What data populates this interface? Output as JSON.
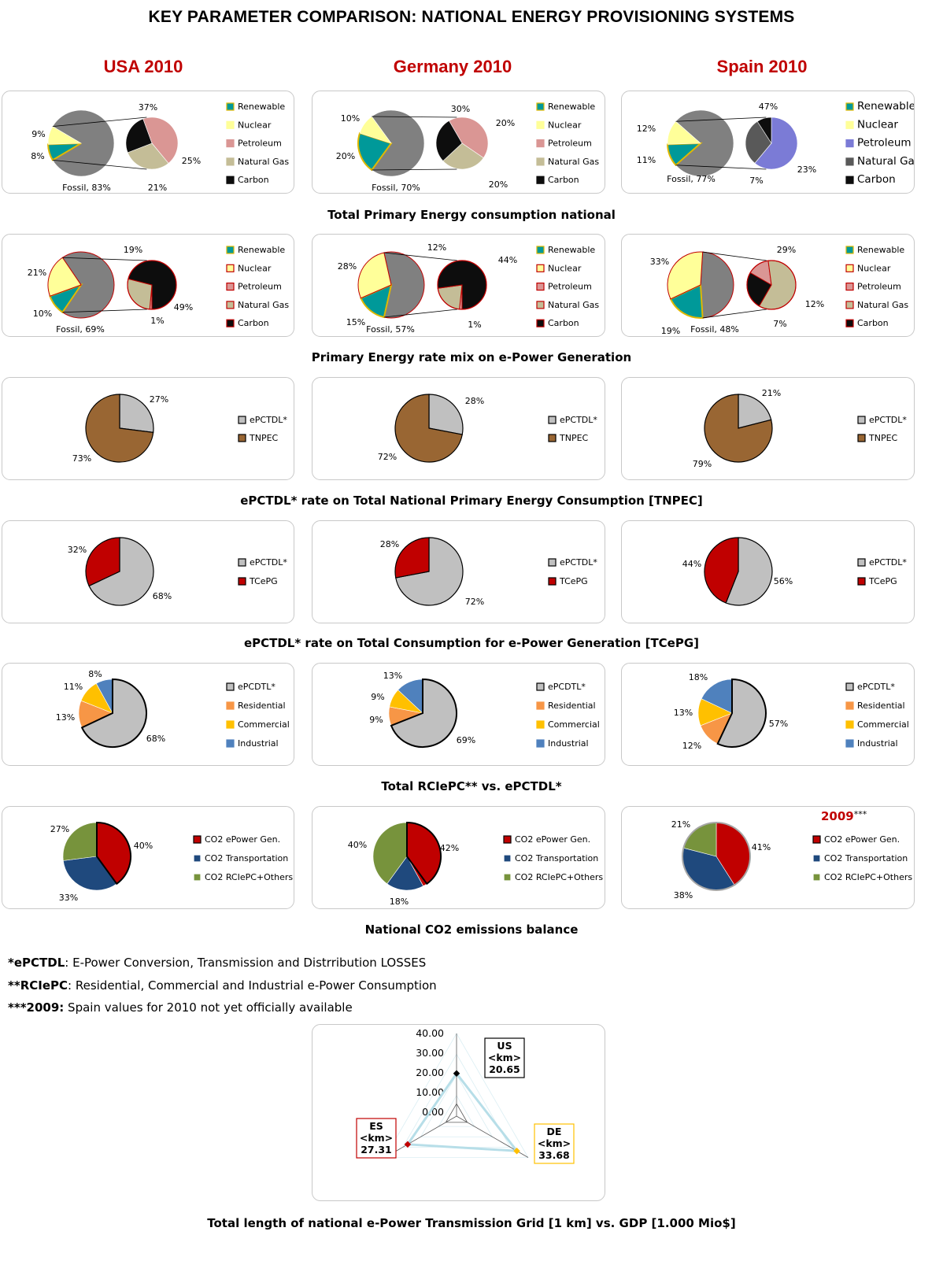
{
  "title": "KEY PARAMETER COMPARISON: NATIONAL ENERGY PROVISIONING SYSTEMS",
  "countries": [
    "USA 2010",
    "Germany 2010",
    "Spain 2010"
  ],
  "colors": {
    "renewable": "#009999",
    "nuclear": "#ffff99",
    "petroleum": "#da9694",
    "natural_gas": "#c4bd97",
    "carbon": "#0d0d0d",
    "fossil": "#808080",
    "petroleum_es": "#7b7bd6",
    "natural_gas_es": "#595959",
    "epctdl": "#c0c0c0",
    "tnpec": "#996633",
    "tcepg": "#c00000",
    "residential": "#f79646",
    "commercial": "#ffc000",
    "industrial": "#4f81bd",
    "co2_power": "#c00000",
    "co2_transport": "#1f497d",
    "co2_others": "#77933c",
    "accent": "#c00000"
  },
  "sections": {
    "s1": "Total Primary  Energy consumption national",
    "s2": "Primary Energy rate mix on e-Power Generation",
    "s3": "ePCTDL* rate on Total National Primary Energy Consumption [TNPEC]",
    "s4": "ePCTDL* rate on Total Consumption for e-Power Generation [TCePG]",
    "s5": "Total RCIePC** vs. ePCTDL*",
    "s6": "National CO2 emissions balance",
    "s7": "Total length of national e-Power Transmission Grid [1 km] vs. GDP [1.000 Mio$]"
  },
  "legends": {
    "energy": [
      "Renewable",
      "Nuclear",
      "Petroleum",
      "Natural Gas",
      "Carbon"
    ],
    "tnpec": [
      "ePCTDL*",
      "TNPEC"
    ],
    "tcepg": [
      "ePCTDL*",
      "TCePG"
    ],
    "rciepc": [
      "ePCDTL*",
      "Residential",
      "Commercial",
      "Industrial"
    ],
    "co2": [
      "CO2 ePower Gen.",
      "CO2 Transportation",
      "CO2 RCIePC+Others"
    ]
  },
  "spain_co2_year": "2009",
  "spain_co2_year_mark": "***",
  "notes": [
    {
      "key": "*ePCTDL",
      "text": ": E-Power Conversion, Transmission and Distrribution LOSSES"
    },
    {
      "key": "**RCIePC",
      "text": ": Residential, Commercial and Industrial e-Power Consumption"
    },
    {
      "key": "***2009:",
      "text": " Spain values for 2010 not yet officially available"
    }
  ],
  "chart_data": [
    {
      "type": "pie",
      "id": "primary_energy_consumption",
      "title": "Total Primary  Energy consumption national",
      "countries": [
        {
          "name": "USA 2010",
          "main": {
            "Renewable": 8,
            "Nuclear": 9,
            "Fossil": 83
          },
          "fossil_breakdown": {
            "Petroleum": 37,
            "Natural Gas": 25,
            "Carbon": 21
          }
        },
        {
          "name": "Germany 2010",
          "main": {
            "Renewable": 20,
            "Nuclear": 10,
            "Fossil": 70
          },
          "fossil_breakdown": {
            "Petroleum": 30,
            "Natural Gas": 20,
            "Carbon": 20
          }
        },
        {
          "name": "Spain 2010",
          "main": {
            "Renewable": 11,
            "Nuclear": 12,
            "Fossil": 77
          },
          "fossil_breakdown": {
            "Petroleum": 47,
            "Natural Gas": 23,
            "Carbon": 7
          }
        }
      ]
    },
    {
      "type": "pie",
      "id": "power_generation_mix",
      "title": "Primary Energy rate mix on e-Power Generation",
      "countries": [
        {
          "name": "USA 2010",
          "main": {
            "Renewable": 10,
            "Nuclear": 21,
            "Fossil": 69
          },
          "fossil_breakdown": {
            "Petroleum": 1,
            "Natural Gas": 19,
            "Carbon": 49
          }
        },
        {
          "name": "Germany 2010",
          "main": {
            "Renewable": 15,
            "Nuclear": 28,
            "Fossil": 57
          },
          "fossil_breakdown": {
            "Petroleum": 1,
            "Natural Gas": 12,
            "Carbon": 44
          }
        },
        {
          "name": "Spain 2010",
          "main": {
            "Renewable": 19,
            "Nuclear": 33,
            "Fossil": 48
          },
          "fossil_breakdown": {
            "Petroleum": 7,
            "Natural Gas": 29,
            "Carbon": 12
          }
        }
      ]
    },
    {
      "type": "pie",
      "id": "epctdl_tnpec",
      "title": "ePCTDL* rate on Total National Primary Energy Consumption [TNPEC]",
      "countries": [
        {
          "name": "USA 2010",
          "values": {
            "ePCTDL*": 27,
            "TNPEC": 73
          }
        },
        {
          "name": "Germany 2010",
          "values": {
            "ePCTDL*": 28,
            "TNPEC": 72
          }
        },
        {
          "name": "Spain 2010",
          "values": {
            "ePCTDL*": 21,
            "TNPEC": 79
          }
        }
      ]
    },
    {
      "type": "pie",
      "id": "epctdl_tcepg",
      "title": "ePCTDL* rate on Total Consumption for e-Power Generation [TCePG]",
      "countries": [
        {
          "name": "USA 2010",
          "values": {
            "ePCTDL*": 68,
            "TCePG": 32
          }
        },
        {
          "name": "Germany 2010",
          "values": {
            "ePCTDL*": 72,
            "TCePG": 28
          }
        },
        {
          "name": "Spain 2010",
          "values": {
            "ePCTDL*": 56,
            "TCePG": 44
          }
        }
      ]
    },
    {
      "type": "pie",
      "id": "rciepc_vs_epctdl",
      "title": "Total RCIePC** vs. ePCTDL*",
      "countries": [
        {
          "name": "USA 2010",
          "values": {
            "ePCDTL*": 68,
            "Residential": 13,
            "Commercial": 11,
            "Industrial": 8
          }
        },
        {
          "name": "Germany 2010",
          "values": {
            "ePCDTL*": 69,
            "Residential": 9,
            "Commercial": 9,
            "Industrial": 13
          }
        },
        {
          "name": "Spain 2010",
          "values": {
            "ePCDTL*": 57,
            "Residential": 12,
            "Commercial": 13,
            "Industrial": 18
          }
        }
      ]
    },
    {
      "type": "pie",
      "id": "co2_balance",
      "title": "National CO2 emissions balance",
      "countries": [
        {
          "name": "USA 2010",
          "values": {
            "CO2 ePower Gen.": 40,
            "CO2 Transportation": 33,
            "CO2 RCIePC+Others": 27
          }
        },
        {
          "name": "Germany 2010",
          "values": {
            "CO2 ePower Gen.": 42,
            "CO2 Transportation": 18,
            "CO2 RCIePC+Others": 40
          }
        },
        {
          "name": "Spain 2009",
          "values": {
            "CO2 ePower Gen.": 41,
            "CO2 Transportation": 38,
            "CO2 RCIePC+Others": 21
          }
        }
      ]
    },
    {
      "type": "radar",
      "id": "grid_length_gdp",
      "title": "Total length of national e-Power Transmission Grid [1 km] vs. GDP [1.000 Mio$]",
      "axis_ticks": [
        "40.00",
        "30.00",
        "20.00",
        "10.00",
        "0.00"
      ],
      "rlim": [
        0,
        40
      ],
      "points": [
        {
          "axis": "US",
          "unit": "<km>",
          "value": 20.65,
          "label": "20.65"
        },
        {
          "axis": "DE",
          "unit": "<km>",
          "value": 33.68,
          "label": "33.68"
        },
        {
          "axis": "ES",
          "unit": "<km>",
          "value": 27.31,
          "label": "27.31"
        }
      ]
    }
  ]
}
